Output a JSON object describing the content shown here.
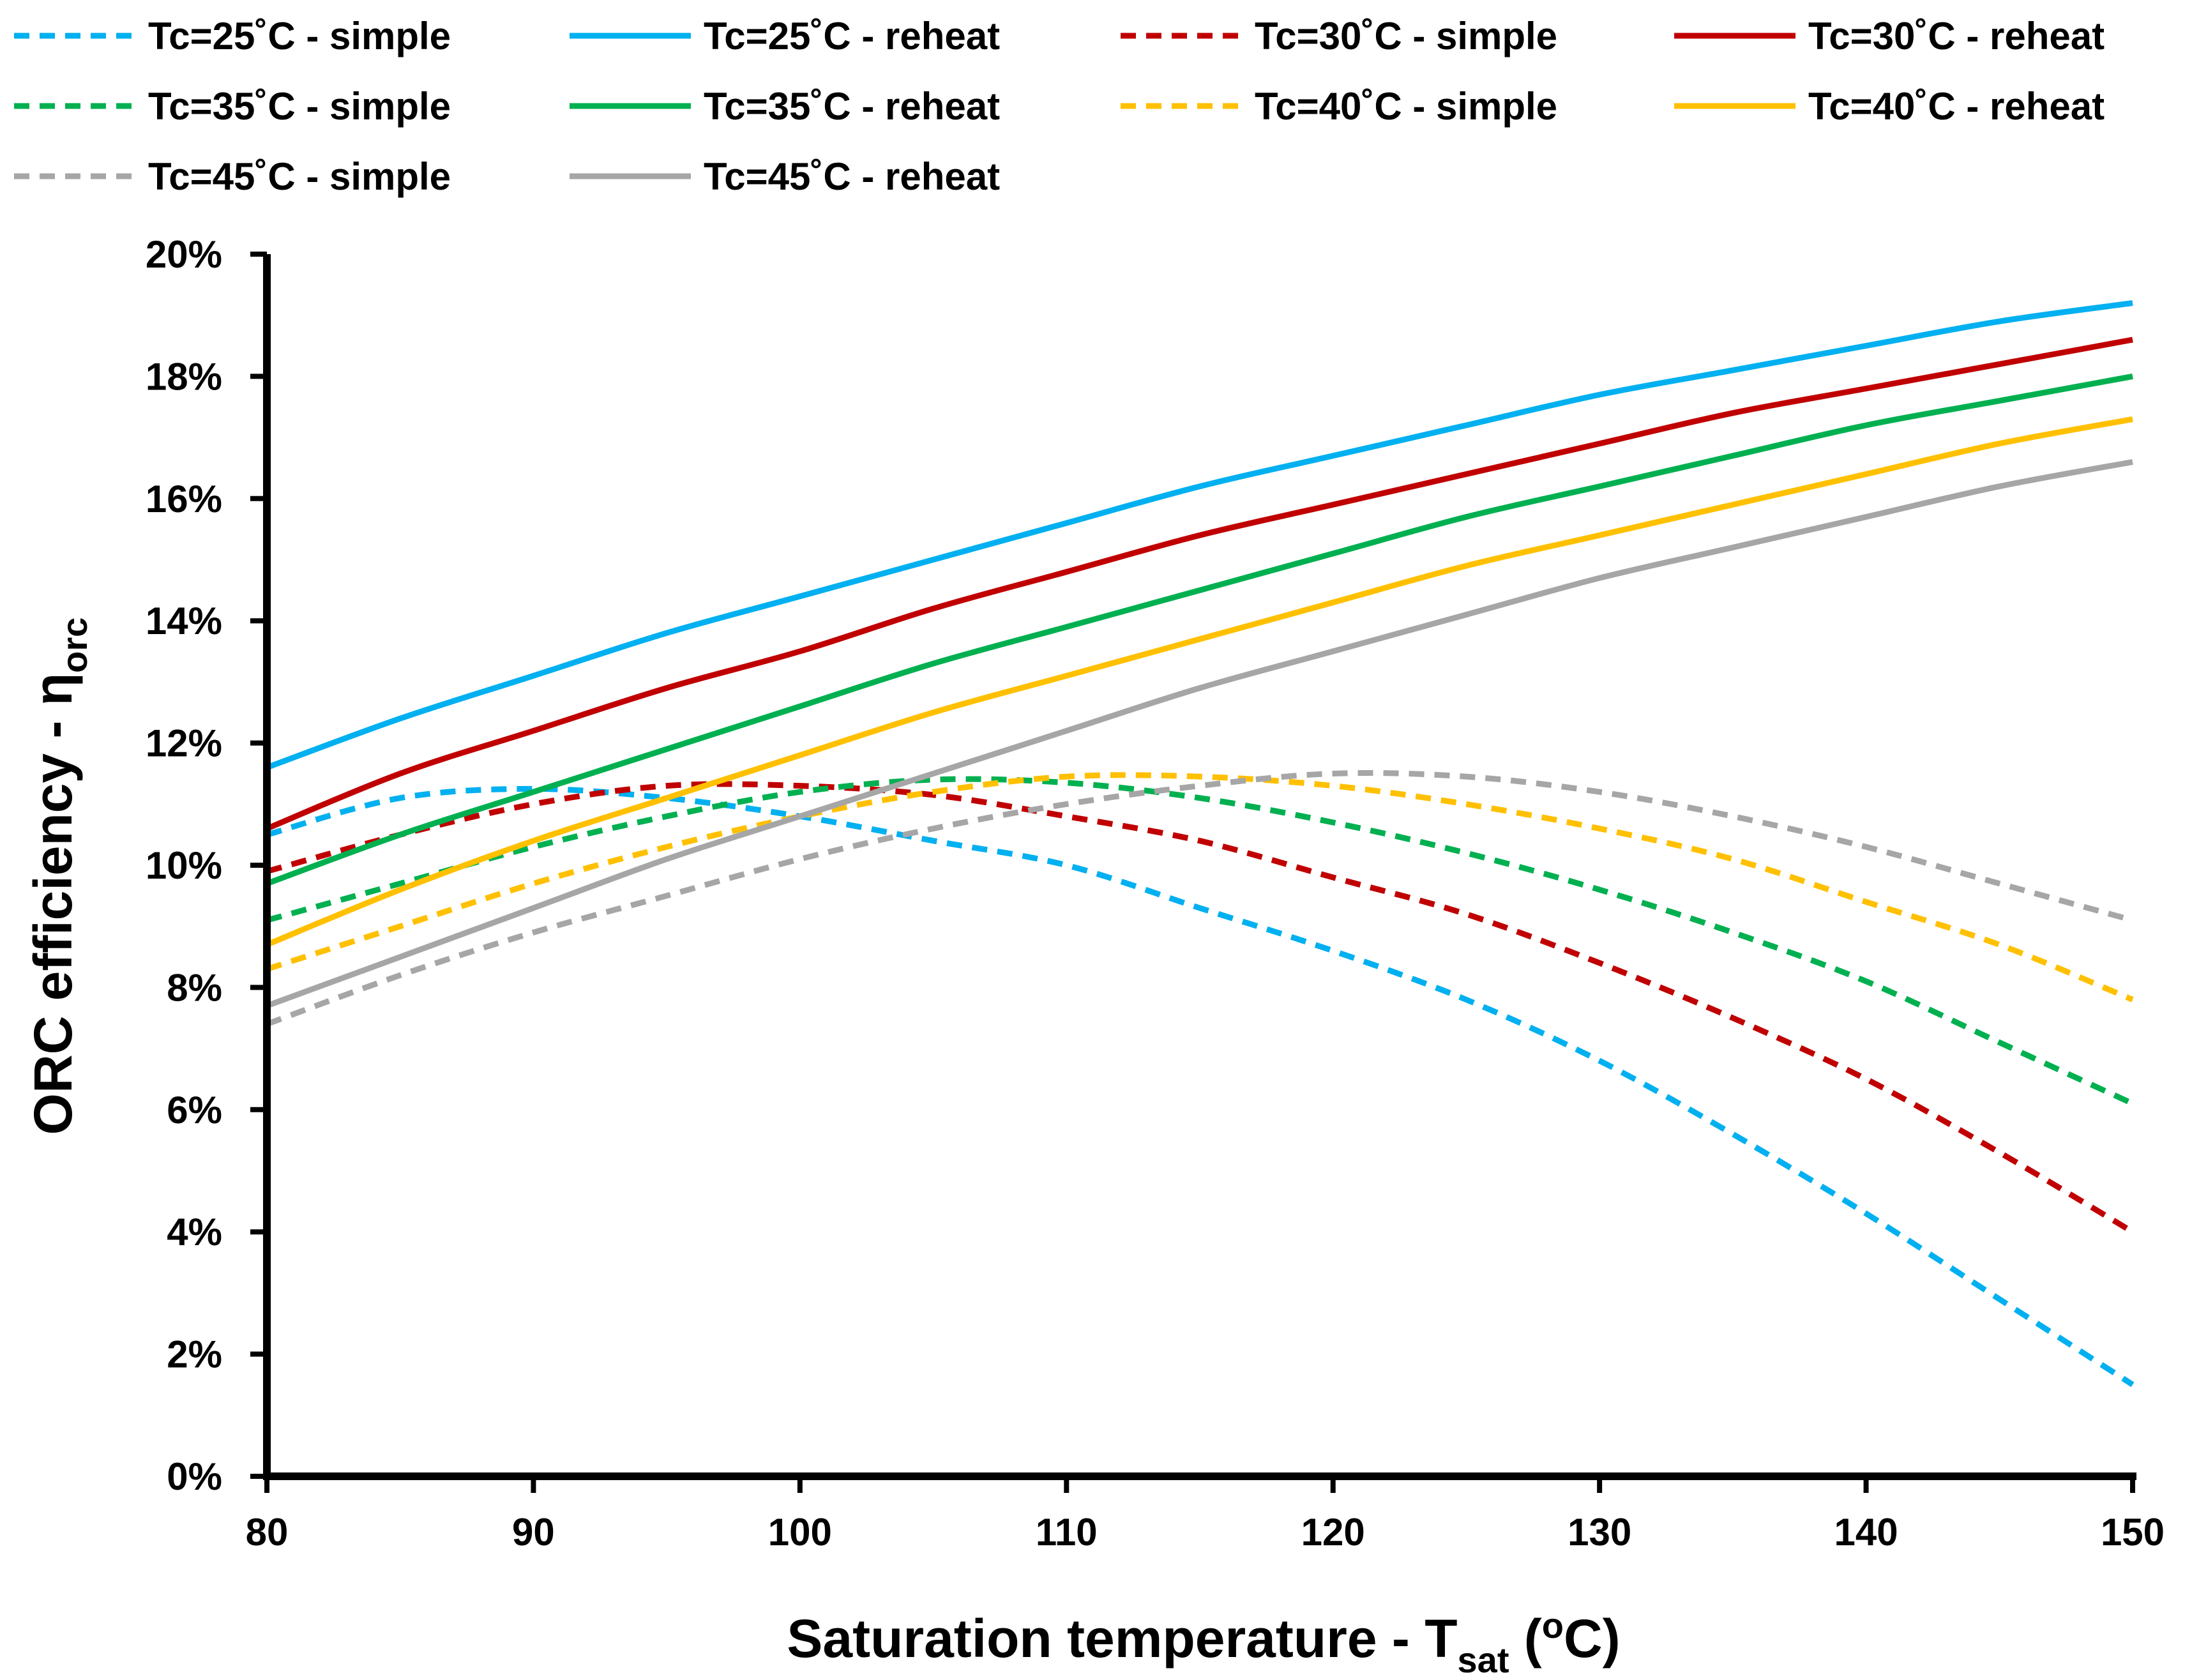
{
  "chart_data": {
    "type": "line",
    "title": "",
    "xlabel": {
      "prefix": "Saturation temperature - T",
      "sub": "sat",
      "middle": " (",
      "sup": "o",
      "suffix": "C)"
    },
    "ylabel": {
      "prefix": "ORC efficiency - η",
      "sub": "orc"
    },
    "xlim": [
      80,
      150
    ],
    "ylim": [
      0,
      20
    ],
    "x_ticks": [
      80,
      90,
      100,
      110,
      120,
      130,
      140,
      150
    ],
    "x_tick_labels": [
      "80",
      "90",
      "100",
      "110",
      "120",
      "130",
      "140",
      "150"
    ],
    "y_ticks": [
      0,
      2,
      4,
      6,
      8,
      10,
      12,
      14,
      16,
      18,
      20
    ],
    "y_tick_labels": [
      "0%",
      "2%",
      "4%",
      "6%",
      "8%",
      "10%",
      "12%",
      "14%",
      "16%",
      "18%",
      "20%"
    ],
    "grid": false,
    "legend_position": "top",
    "x": [
      80,
      85,
      90,
      95,
      100,
      105,
      110,
      115,
      120,
      125,
      130,
      135,
      140,
      145,
      150
    ],
    "series": [
      {
        "name": "Tc=25˚C - simple",
        "color": "#00B0F0",
        "style": "dashed",
        "values": [
          10.5,
          11.1,
          11.25,
          11.1,
          10.8,
          10.4,
          10.0,
          9.3,
          8.6,
          7.8,
          6.8,
          5.6,
          4.3,
          2.9,
          1.5
        ]
      },
      {
        "name": "Tc=25˚C - reheat",
        "color": "#00B0F0",
        "style": "solid",
        "values": [
          11.6,
          12.4,
          13.1,
          13.8,
          14.4,
          15.0,
          15.6,
          16.2,
          16.7,
          17.2,
          17.7,
          18.1,
          18.5,
          18.9,
          19.2
        ]
      },
      {
        "name": "Tc=30˚C - simple",
        "color": "#C00000",
        "style": "dashed",
        "values": [
          9.9,
          10.5,
          11.0,
          11.3,
          11.3,
          11.15,
          10.8,
          10.4,
          9.8,
          9.2,
          8.4,
          7.5,
          6.5,
          5.3,
          4.0
        ]
      },
      {
        "name": "Tc=30˚C - reheat",
        "color": "#C00000",
        "style": "solid",
        "values": [
          10.6,
          11.5,
          12.2,
          12.9,
          13.5,
          14.2,
          14.8,
          15.4,
          15.9,
          16.4,
          16.9,
          17.4,
          17.8,
          18.2,
          18.6
        ]
      },
      {
        "name": "Tc=35˚C - simple",
        "color": "#00B050",
        "style": "dashed",
        "values": [
          9.1,
          9.7,
          10.3,
          10.8,
          11.2,
          11.4,
          11.35,
          11.1,
          10.7,
          10.2,
          9.6,
          8.9,
          8.1,
          7.1,
          6.1
        ]
      },
      {
        "name": "Tc=35˚C - reheat",
        "color": "#00B050",
        "style": "solid",
        "values": [
          9.7,
          10.5,
          11.2,
          11.9,
          12.6,
          13.3,
          13.9,
          14.5,
          15.1,
          15.7,
          16.2,
          16.7,
          17.2,
          17.6,
          18.0
        ]
      },
      {
        "name": "Tc=40˚C - simple",
        "color": "#FFC000",
        "style": "dashed",
        "values": [
          8.3,
          9.0,
          9.7,
          10.3,
          10.8,
          11.2,
          11.45,
          11.45,
          11.3,
          11.0,
          10.6,
          10.1,
          9.4,
          8.7,
          7.8
        ]
      },
      {
        "name": "Tc=40˚C - reheat",
        "color": "#FFC000",
        "style": "solid",
        "values": [
          8.7,
          9.6,
          10.4,
          11.1,
          11.8,
          12.5,
          13.1,
          13.7,
          14.3,
          14.9,
          15.4,
          15.9,
          16.4,
          16.9,
          17.3
        ]
      },
      {
        "name": "Tc=45˚C - simple",
        "color": "#A6A6A6",
        "style": "dashed",
        "values": [
          7.4,
          8.2,
          8.9,
          9.5,
          10.1,
          10.6,
          11.0,
          11.3,
          11.5,
          11.45,
          11.2,
          10.8,
          10.3,
          9.7,
          9.1
        ]
      },
      {
        "name": "Tc=45˚C - reheat",
        "color": "#A6A6A6",
        "style": "solid",
        "values": [
          7.7,
          8.5,
          9.3,
          10.1,
          10.8,
          11.5,
          12.2,
          12.9,
          13.5,
          14.1,
          14.7,
          15.2,
          15.7,
          16.2,
          16.6
        ]
      }
    ]
  }
}
